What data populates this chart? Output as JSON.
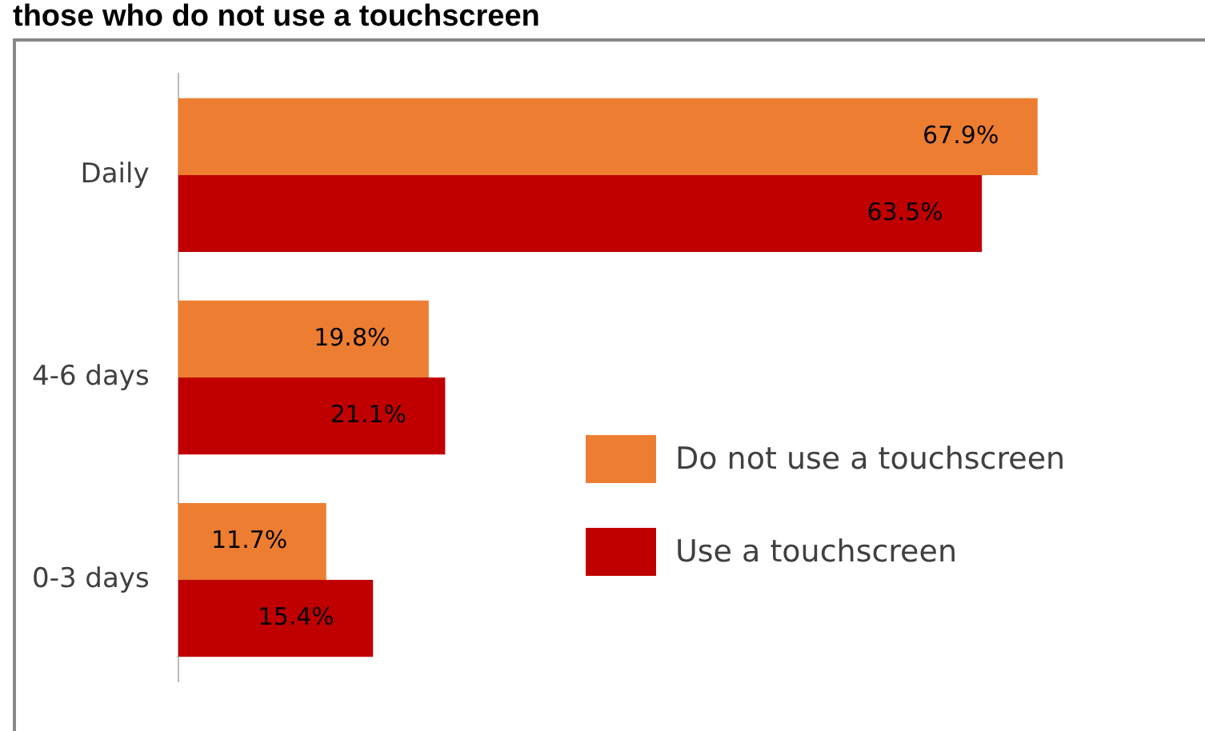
{
  "chart_data": {
    "type": "bar",
    "orientation": "horizontal",
    "title": "those who do not use a touchscreen",
    "categories": [
      "Daily",
      "4-6 days",
      "0-3 days"
    ],
    "series": [
      {
        "name": "Do not use a touchscreen",
        "color": "#ed7d31",
        "values": [
          67.9,
          19.8,
          11.7
        ],
        "value_labels": [
          "67.9%",
          "19.8%",
          "11.7%"
        ]
      },
      {
        "name": "Use a touchscreen",
        "color": "#c00000",
        "values": [
          63.5,
          21.1,
          15.4
        ],
        "value_labels": [
          "63.5%",
          "21.1%",
          "15.4%"
        ]
      }
    ],
    "tick_labels": "y",
    "legend": "right"
  }
}
